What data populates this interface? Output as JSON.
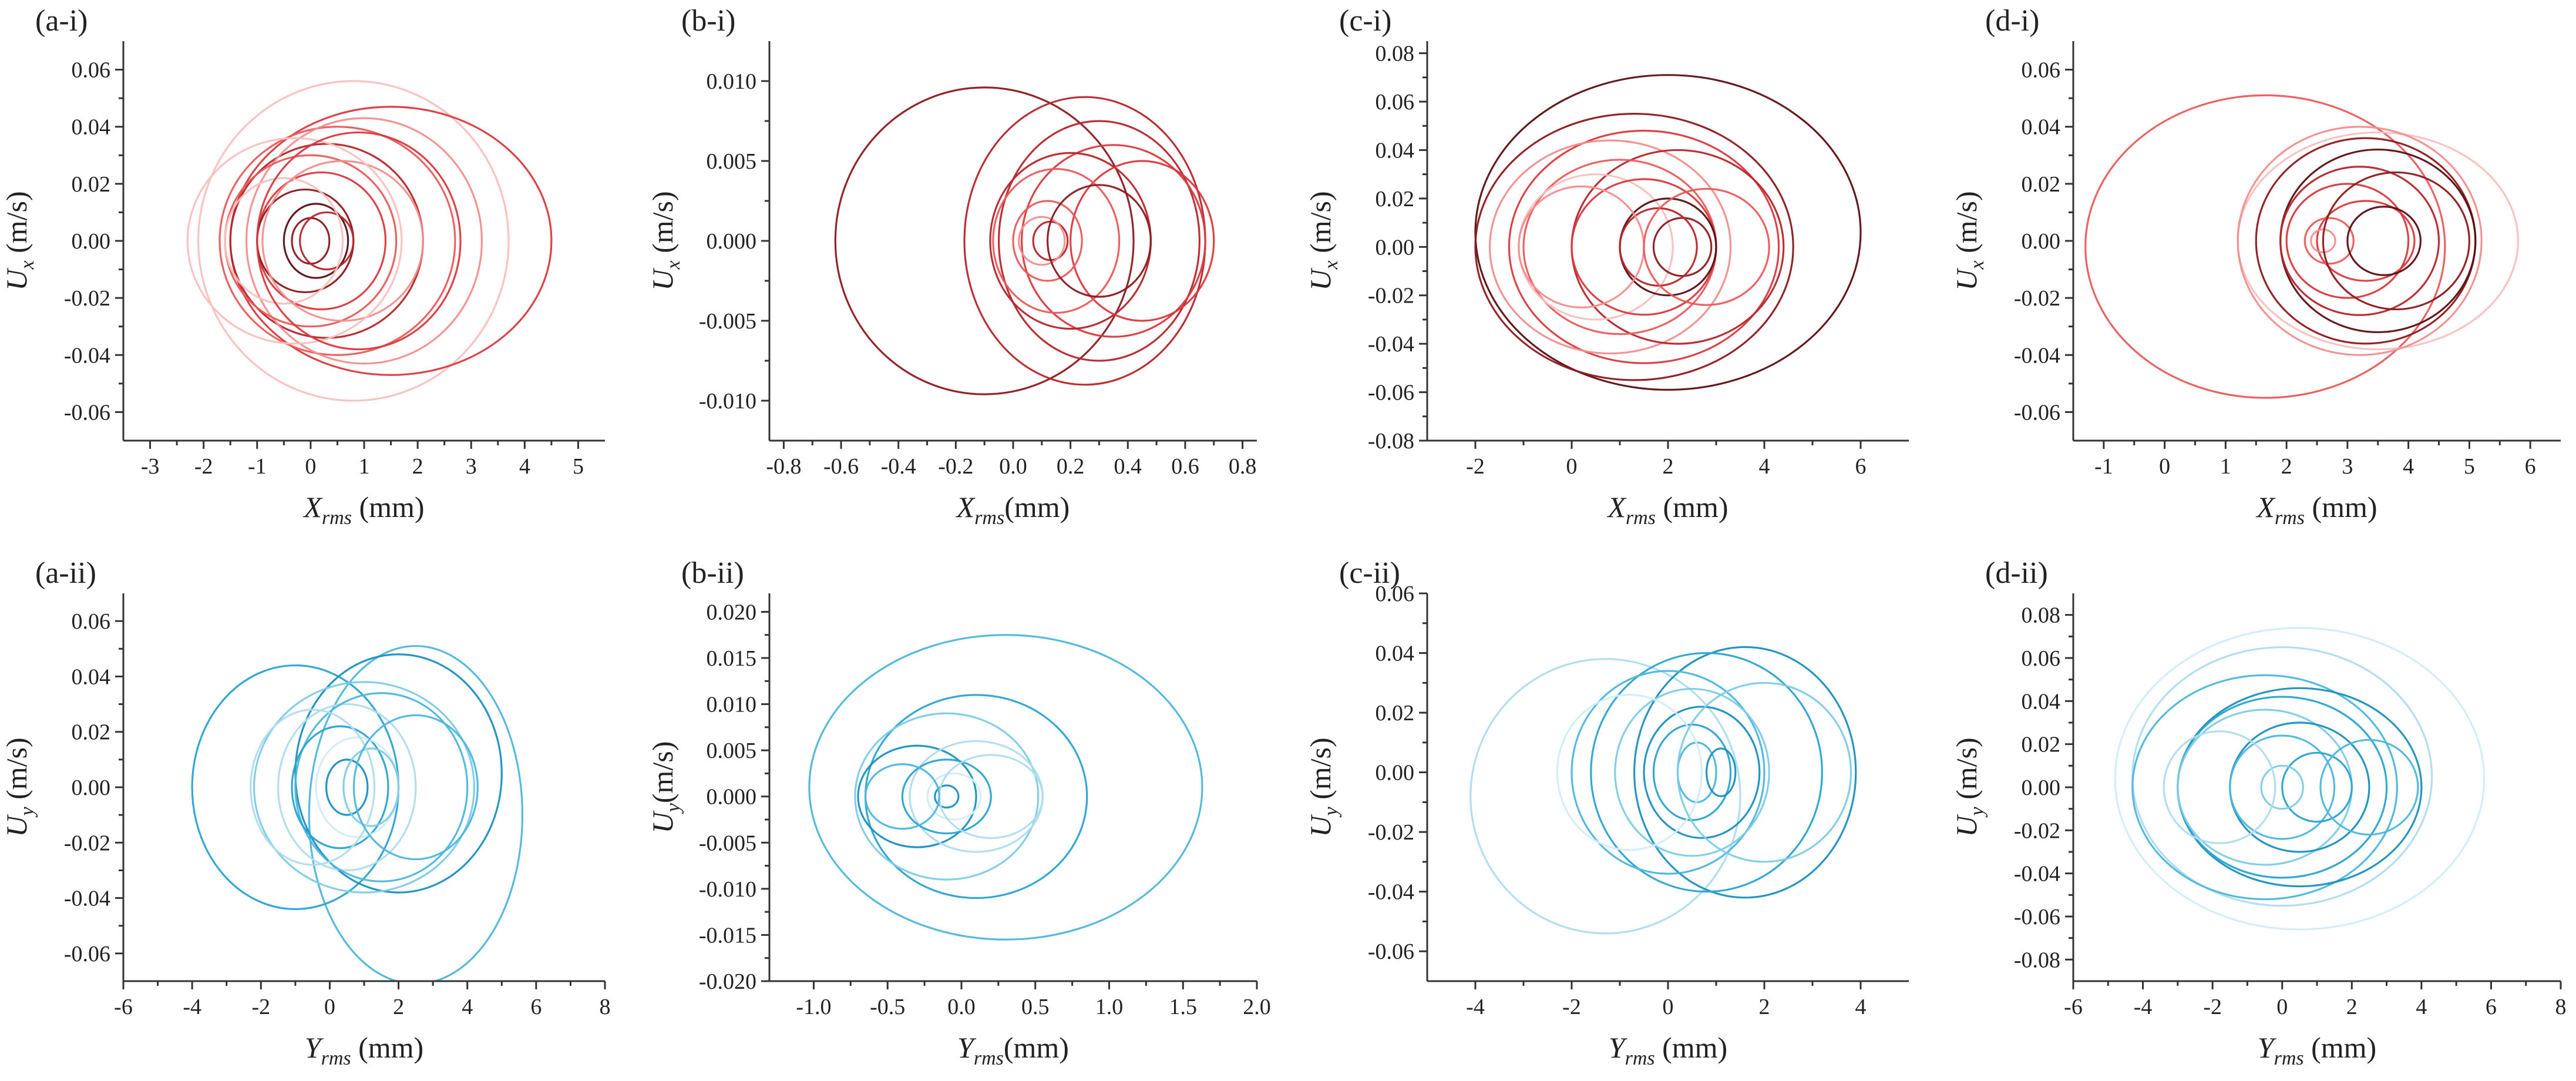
{
  "figure": {
    "type": "phase-portrait-grid"
  },
  "colors": {
    "red": [
      "#5a0f12",
      "#8b1a1f",
      "#b5262c",
      "#d9393e",
      "#ea5a5a",
      "#f18e8e",
      "#f8c0bf"
    ],
    "blue": [
      "#1a8fbf",
      "#29a3d1",
      "#4cb6dc",
      "#7ecbe6",
      "#aedced",
      "#d3edf6"
    ]
  },
  "chart_data": [
    {
      "id": "a-i",
      "tag": "(a-i)",
      "type": "line",
      "palette": "red",
      "xlabel_main": "X",
      "xlabel_sub": "rms",
      "xlabel_unit": " (mm)",
      "ylabel_main": "U",
      "ylabel_sub": "x",
      "ylabel_unit": " (m/s)",
      "xlim": [
        -3.5,
        5.5
      ],
      "ylim": [
        -0.07,
        0.07
      ],
      "xticks": [
        -3,
        -2,
        -1,
        0,
        1,
        2,
        3,
        4,
        5
      ],
      "xticklabels": [
        "-3",
        "-2",
        "-1",
        "0",
        "1",
        "2",
        "3",
        "4",
        "5"
      ],
      "yticks": [
        -0.06,
        -0.04,
        -0.02,
        0.0,
        0.02,
        0.04,
        0.06
      ],
      "yticklabels": [
        "-0.06",
        "-0.04",
        "-0.02",
        "0.00",
        "0.02",
        "0.04",
        "0.06"
      ],
      "orbits": [
        [
          0.8,
          0.0,
          2.9,
          0.056,
          6
        ],
        [
          1.5,
          0.0,
          3.0,
          0.047,
          3
        ],
        [
          0.5,
          0.0,
          2.2,
          0.04,
          4
        ],
        [
          0.3,
          0.0,
          1.8,
          0.034,
          2
        ],
        [
          1.0,
          0.0,
          2.2,
          0.043,
          5
        ],
        [
          0.0,
          0.0,
          1.6,
          0.03,
          4
        ],
        [
          0.2,
          0.0,
          1.2,
          0.024,
          3
        ],
        [
          -0.1,
          0.0,
          0.9,
          0.018,
          1
        ],
        [
          0.1,
          0.0,
          0.6,
          0.013,
          0
        ],
        [
          0.0,
          0.0,
          0.35,
          0.008,
          1
        ],
        [
          0.3,
          0.0,
          0.5,
          0.01,
          2
        ],
        [
          -0.5,
          0.0,
          1.1,
          0.022,
          6
        ],
        [
          0.6,
          0.0,
          1.5,
          0.028,
          5
        ],
        [
          -0.3,
          0.0,
          2.0,
          0.036,
          6
        ],
        [
          0.9,
          0.0,
          1.9,
          0.038,
          3
        ]
      ]
    },
    {
      "id": "b-i",
      "tag": "(b-i)",
      "type": "line",
      "palette": "red",
      "xlabel_main": "X",
      "xlabel_sub": "rms",
      "xlabel_unit": "(mm)",
      "ylabel_main": "U",
      "ylabel_sub": "x",
      "ylabel_unit": " (m/s)",
      "xlim": [
        -0.85,
        0.85
      ],
      "ylim": [
        -0.0125,
        0.0125
      ],
      "xticks": [
        -0.8,
        -0.6,
        -0.4,
        -0.2,
        0.0,
        0.2,
        0.4,
        0.6,
        0.8
      ],
      "xticklabels": [
        "-0.8",
        "-0.6",
        "-0.4",
        "-0.2",
        "0.0",
        "0.2",
        "0.4",
        "0.6",
        "0.8"
      ],
      "yticks": [
        -0.01,
        -0.005,
        0.0,
        0.005,
        0.01
      ],
      "yticklabels": [
        "-0.010",
        "-0.005",
        "0.000",
        "0.005",
        "0.010"
      ],
      "orbits": [
        [
          -0.1,
          0.0,
          0.52,
          0.0096,
          1
        ],
        [
          0.25,
          0.0,
          0.42,
          0.009,
          2
        ],
        [
          0.3,
          0.0,
          0.35,
          0.0075,
          2
        ],
        [
          0.35,
          0.0,
          0.32,
          0.006,
          3
        ],
        [
          0.2,
          0.0,
          0.28,
          0.0055,
          2
        ],
        [
          0.45,
          0.0,
          0.25,
          0.005,
          3
        ],
        [
          0.15,
          0.0,
          0.22,
          0.0045,
          4
        ],
        [
          0.12,
          0.0,
          0.12,
          0.0025,
          4
        ],
        [
          0.13,
          0.0,
          0.06,
          0.0012,
          2
        ],
        [
          0.1,
          0.0,
          0.08,
          0.0015,
          5
        ],
        [
          0.3,
          0.0,
          0.18,
          0.0035,
          1
        ]
      ]
    },
    {
      "id": "c-i",
      "tag": "(c-i)",
      "type": "line",
      "palette": "red",
      "xlabel_main": "X",
      "xlabel_sub": "rms",
      "xlabel_unit": " (mm)",
      "ylabel_main": "U",
      "ylabel_sub": "x",
      "ylabel_unit": " (m/s)",
      "xlim": [
        -3.0,
        7.0
      ],
      "ylim": [
        -0.08,
        0.085
      ],
      "xticks": [
        -2,
        0,
        2,
        4,
        6
      ],
      "xticklabels": [
        "-2",
        "0",
        "2",
        "4",
        "6"
      ],
      "yticks": [
        -0.08,
        -0.06,
        -0.04,
        -0.02,
        0.0,
        0.02,
        0.04,
        0.06,
        0.08
      ],
      "yticklabels": [
        "-0.08",
        "-0.06",
        "-0.04",
        "-0.02",
        "0.00",
        "0.02",
        "0.04",
        "0.06",
        "0.08"
      ],
      "orbits": [
        [
          2.0,
          0.006,
          4.0,
          0.065,
          0
        ],
        [
          1.3,
          0.0,
          3.3,
          0.055,
          1
        ],
        [
          1.5,
          0.0,
          2.8,
          0.048,
          3
        ],
        [
          0.8,
          0.0,
          2.5,
          0.044,
          5
        ],
        [
          2.2,
          0.0,
          2.2,
          0.04,
          2
        ],
        [
          1.0,
          0.0,
          2.0,
          0.036,
          4
        ],
        [
          0.5,
          0.0,
          1.6,
          0.03,
          6
        ],
        [
          1.5,
          0.0,
          1.5,
          0.028,
          3
        ],
        [
          2.0,
          0.0,
          1.0,
          0.02,
          0
        ],
        [
          2.3,
          0.0,
          0.6,
          0.012,
          1
        ],
        [
          1.8,
          0.0,
          0.8,
          0.016,
          2
        ],
        [
          0.2,
          0.0,
          1.3,
          0.025,
          5
        ],
        [
          2.8,
          0.0,
          1.3,
          0.024,
          4
        ]
      ]
    },
    {
      "id": "d-i",
      "tag": "(d-i)",
      "type": "line",
      "palette": "red",
      "xlabel_main": "X",
      "xlabel_sub": "rms",
      "xlabel_unit": " (mm)",
      "ylabel_main": "U",
      "ylabel_sub": "x",
      "ylabel_unit": " (m/s)",
      "xlim": [
        -1.5,
        6.5
      ],
      "ylim": [
        -0.07,
        0.07
      ],
      "xticks": [
        -1,
        0,
        1,
        2,
        3,
        4,
        5,
        6
      ],
      "xticklabels": [
        "-1",
        "0",
        "1",
        "2",
        "3",
        "4",
        "5",
        "6"
      ],
      "yticks": [
        -0.06,
        -0.04,
        -0.02,
        0.0,
        0.02,
        0.04,
        0.06
      ],
      "yticklabels": [
        "-0.06",
        "-0.04",
        "-0.02",
        "0.00",
        "0.02",
        "0.04",
        "0.06"
      ],
      "orbits": [
        [
          1.65,
          -0.002,
          2.95,
          0.053,
          4
        ],
        [
          3.5,
          0.0,
          2.3,
          0.038,
          6
        ],
        [
          3.2,
          0.0,
          2.0,
          0.04,
          5
        ],
        [
          3.3,
          0.0,
          1.8,
          0.036,
          1
        ],
        [
          3.5,
          0.0,
          1.6,
          0.032,
          0
        ],
        [
          3.2,
          0.0,
          1.3,
          0.026,
          2
        ],
        [
          3.0,
          0.0,
          1.0,
          0.02,
          3
        ],
        [
          3.3,
          0.0,
          0.8,
          0.014,
          3
        ],
        [
          2.7,
          0.0,
          0.4,
          0.008,
          4
        ],
        [
          3.6,
          0.0,
          0.6,
          0.012,
          0
        ],
        [
          2.6,
          0.0,
          0.2,
          0.004,
          5
        ],
        [
          3.8,
          0.0,
          1.2,
          0.024,
          1
        ]
      ]
    },
    {
      "id": "a-ii",
      "tag": "(a-ii)",
      "type": "line",
      "palette": "blue",
      "xlabel_main": "Y",
      "xlabel_sub": "rms",
      "xlabel_unit": " (mm)",
      "ylabel_main": "U",
      "ylabel_sub": "y",
      "ylabel_unit": " (m/s)",
      "xlim": [
        -6.0,
        8.0
      ],
      "ylim": [
        -0.07,
        0.07
      ],
      "xticks": [
        -6,
        -4,
        -2,
        0,
        2,
        4,
        6,
        8
      ],
      "xticklabels": [
        "-6",
        "-4",
        "-2",
        "0",
        "2",
        "4",
        "6",
        "8"
      ],
      "yticks": [
        -0.06,
        -0.04,
        -0.02,
        0.0,
        0.02,
        0.04,
        0.06
      ],
      "yticklabels": [
        "-0.06",
        "-0.04",
        "-0.02",
        "0.00",
        "0.02",
        "0.04",
        "0.06"
      ],
      "orbits": [
        [
          2.5,
          -0.01,
          3.1,
          0.061,
          2
        ],
        [
          -1.0,
          0.0,
          3.0,
          0.044,
          1
        ],
        [
          2.0,
          0.005,
          3.0,
          0.043,
          0
        ],
        [
          1.0,
          0.0,
          3.2,
          0.038,
          3
        ],
        [
          0.5,
          0.0,
          2.0,
          0.03,
          4
        ],
        [
          1.5,
          0.0,
          2.5,
          0.034,
          2
        ],
        [
          0.3,
          0.0,
          1.4,
          0.022,
          1
        ],
        [
          0.8,
          0.0,
          1.2,
          0.018,
          5
        ],
        [
          0.5,
          0.0,
          0.6,
          0.01,
          0
        ],
        [
          1.2,
          0.0,
          0.8,
          0.014,
          3
        ],
        [
          -0.5,
          0.0,
          1.8,
          0.028,
          4
        ],
        [
          2.5,
          0.0,
          1.8,
          0.026,
          2
        ]
      ]
    },
    {
      "id": "b-ii",
      "tag": "(b-ii)",
      "type": "line",
      "palette": "blue",
      "xlabel_main": "Y",
      "xlabel_sub": "rms",
      "xlabel_unit": "(mm)",
      "ylabel_main": "U",
      "ylabel_sub": "y",
      "ylabel_unit": "(m/s)",
      "xlim": [
        -1.3,
        2.0
      ],
      "ylim": [
        -0.02,
        0.022
      ],
      "xticks": [
        -1.0,
        -0.5,
        0.0,
        0.5,
        1.0,
        1.5,
        2.0
      ],
      "xticklabels": [
        "-1.0",
        "-0.5",
        "0.0",
        "0.5",
        "1.0",
        "1.5",
        "2.0"
      ],
      "yticks": [
        -0.02,
        -0.015,
        -0.01,
        -0.005,
        0.0,
        0.005,
        0.01,
        0.015,
        0.02
      ],
      "yticklabels": [
        "-0.020",
        "-0.015",
        "-0.010",
        "-0.005",
        "0.000",
        "0.005",
        "0.010",
        "0.015",
        "0.020"
      ],
      "orbits": [
        [
          0.3,
          0.001,
          1.33,
          0.0165,
          2
        ],
        [
          0.1,
          0.0,
          0.75,
          0.011,
          1
        ],
        [
          -0.1,
          0.0,
          0.62,
          0.009,
          3
        ],
        [
          -0.3,
          0.0,
          0.4,
          0.0055,
          0
        ],
        [
          0.1,
          0.0,
          0.45,
          0.006,
          4
        ],
        [
          -0.1,
          0.0,
          0.3,
          0.004,
          1
        ],
        [
          -0.05,
          0.0,
          0.18,
          0.0025,
          5
        ],
        [
          -0.1,
          0.0,
          0.08,
          0.0012,
          0
        ],
        [
          0.2,
          0.0,
          0.35,
          0.0045,
          4
        ],
        [
          -0.4,
          0.0,
          0.25,
          0.0035,
          2
        ]
      ]
    },
    {
      "id": "c-ii",
      "tag": "(c-ii)",
      "type": "line",
      "palette": "blue",
      "xlabel_main": "Y",
      "xlabel_sub": "rms",
      "xlabel_unit": " (mm)",
      "ylabel_main": "U",
      "ylabel_sub": "y",
      "ylabel_unit": " (m/s)",
      "xlim": [
        -5.0,
        5.0
      ],
      "ylim": [
        -0.07,
        0.06
      ],
      "xticks": [
        -4,
        -2,
        0,
        2,
        4
      ],
      "xticklabels": [
        "-4",
        "-2",
        "0",
        "2",
        "4"
      ],
      "yticks": [
        -0.06,
        -0.04,
        -0.02,
        0.0,
        0.02,
        0.04,
        0.06
      ],
      "yticklabels": [
        "-0.06",
        "-0.04",
        "-0.02",
        "0.00",
        "0.02",
        "0.04",
        "0.06"
      ],
      "orbits": [
        [
          -1.3,
          -0.008,
          2.8,
          0.046,
          4
        ],
        [
          1.6,
          0.0,
          2.3,
          0.042,
          0
        ],
        [
          0.8,
          0.0,
          2.4,
          0.04,
          1
        ],
        [
          0.0,
          0.0,
          2.0,
          0.034,
          2
        ],
        [
          0.5,
          0.0,
          1.6,
          0.028,
          3
        ],
        [
          0.7,
          0.0,
          1.2,
          0.022,
          0
        ],
        [
          0.5,
          0.0,
          0.8,
          0.016,
          1
        ],
        [
          0.6,
          0.0,
          0.4,
          0.01,
          2
        ],
        [
          1.1,
          0.0,
          0.3,
          0.008,
          0
        ],
        [
          -0.8,
          0.0,
          1.5,
          0.026,
          5
        ],
        [
          2.0,
          0.0,
          1.8,
          0.03,
          3
        ]
      ]
    },
    {
      "id": "d-ii",
      "tag": "(d-ii)",
      "type": "line",
      "palette": "blue",
      "xlabel_main": "Y",
      "xlabel_sub": "rms",
      "xlabel_unit": " (mm)",
      "ylabel_main": "U",
      "ylabel_sub": "y",
      "ylabel_unit": " (m/s)",
      "xlim": [
        -6.0,
        8.0
      ],
      "ylim": [
        -0.09,
        0.09
      ],
      "xticks": [
        -6,
        -4,
        -2,
        0,
        2,
        4,
        6,
        8
      ],
      "xticklabels": [
        "-6",
        "-4",
        "-2",
        "0",
        "2",
        "4",
        "6",
        "8"
      ],
      "yticks": [
        -0.08,
        -0.06,
        -0.04,
        -0.02,
        0.0,
        0.02,
        0.04,
        0.06,
        0.08
      ],
      "yticklabels": [
        "-0.08",
        "-0.06",
        "-0.04",
        "-0.02",
        "0.00",
        "0.02",
        "0.04",
        "0.06",
        "0.08"
      ],
      "orbits": [
        [
          0.5,
          0.004,
          5.3,
          0.07,
          5
        ],
        [
          0.0,
          0.005,
          4.3,
          0.06,
          4
        ],
        [
          -0.5,
          0.0,
          3.8,
          0.052,
          2
        ],
        [
          0.5,
          0.0,
          3.5,
          0.046,
          0
        ],
        [
          0.0,
          0.0,
          3.0,
          0.042,
          1
        ],
        [
          -0.5,
          0.0,
          2.5,
          0.036,
          3
        ],
        [
          0.5,
          0.0,
          2.0,
          0.03,
          0
        ],
        [
          0.0,
          0.0,
          1.5,
          0.024,
          2
        ],
        [
          1.0,
          0.0,
          1.0,
          0.016,
          1
        ],
        [
          0.0,
          0.0,
          0.6,
          0.01,
          3
        ],
        [
          -1.8,
          0.0,
          1.6,
          0.026,
          4
        ],
        [
          2.5,
          0.0,
          1.4,
          0.022,
          2
        ]
      ]
    }
  ]
}
